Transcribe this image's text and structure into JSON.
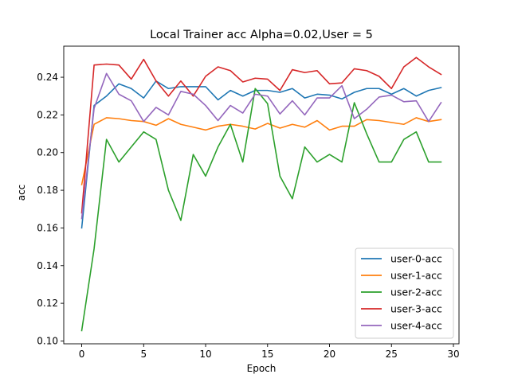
{
  "chart_data": {
    "type": "line",
    "title": "Local Trainer acc Alpha=0.02,User = 5",
    "xlabel": "Epoch",
    "ylabel": "acc",
    "xlim": [
      -1.45,
      30.45
    ],
    "ylim": [
      0.0985,
      0.2565
    ],
    "xticks": [
      0,
      5,
      10,
      15,
      20,
      25,
      30
    ],
    "xtick_labels": [
      "0",
      "5",
      "10",
      "15",
      "20",
      "25",
      "30"
    ],
    "yticks": [
      0.1,
      0.12,
      0.14,
      0.16,
      0.18,
      0.2,
      0.22,
      0.24
    ],
    "ytick_labels": [
      "0.10",
      "0.12",
      "0.14",
      "0.16",
      "0.18",
      "0.20",
      "0.22",
      "0.24"
    ],
    "grid": false,
    "legend_position": "lower right",
    "x": [
      0,
      1,
      2,
      3,
      4,
      5,
      6,
      7,
      8,
      9,
      10,
      11,
      12,
      13,
      14,
      15,
      16,
      17,
      18,
      19,
      20,
      21,
      22,
      23,
      24,
      25,
      26,
      27,
      28,
      29
    ],
    "series": [
      {
        "name": "user-0-acc",
        "color": "#1f77b4",
        "values": [
          0.16,
          0.225,
          0.23,
          0.2365,
          0.234,
          0.229,
          0.238,
          0.234,
          0.235,
          0.235,
          0.235,
          0.228,
          0.233,
          0.23,
          0.233,
          0.233,
          0.232,
          0.234,
          0.229,
          0.231,
          0.2305,
          0.2285,
          0.232,
          0.234,
          0.234,
          0.231,
          0.234,
          0.23,
          0.233,
          0.2345
        ]
      },
      {
        "name": "user-1-acc",
        "color": "#ff7f0e",
        "values": [
          0.183,
          0.215,
          0.2185,
          0.218,
          0.217,
          0.2165,
          0.2145,
          0.218,
          0.215,
          0.2135,
          0.212,
          0.214,
          0.215,
          0.214,
          0.2125,
          0.2155,
          0.213,
          0.215,
          0.2135,
          0.217,
          0.212,
          0.214,
          0.214,
          0.2175,
          0.217,
          0.216,
          0.215,
          0.2185,
          0.2165,
          0.2175
        ]
      },
      {
        "name": "user-2-acc",
        "color": "#2ca02c",
        "values": [
          0.1055,
          0.149,
          0.207,
          0.195,
          0.203,
          0.211,
          0.207,
          0.18,
          0.164,
          0.199,
          0.1875,
          0.203,
          0.215,
          0.195,
          0.234,
          0.226,
          0.1875,
          0.1755,
          0.203,
          0.195,
          0.199,
          0.195,
          0.2265,
          0.21,
          0.195,
          0.195,
          0.207,
          0.211,
          0.195,
          0.195
        ]
      },
      {
        "name": "user-3-acc",
        "color": "#d62728",
        "values": [
          0.168,
          0.2465,
          0.247,
          0.2465,
          0.239,
          0.2495,
          0.238,
          0.23,
          0.238,
          0.23,
          0.2405,
          0.2455,
          0.2435,
          0.2375,
          0.2395,
          0.239,
          0.233,
          0.244,
          0.2425,
          0.2435,
          0.2365,
          0.237,
          0.2445,
          0.2435,
          0.2405,
          0.234,
          0.2455,
          0.2505,
          0.2455,
          0.2415
        ]
      },
      {
        "name": "user-4-acc",
        "color": "#9467bd",
        "values": [
          0.165,
          0.2235,
          0.242,
          0.231,
          0.2275,
          0.2165,
          0.224,
          0.22,
          0.2325,
          0.231,
          0.225,
          0.217,
          0.225,
          0.221,
          0.231,
          0.23,
          0.2205,
          0.2275,
          0.22,
          0.229,
          0.229,
          0.2355,
          0.218,
          0.223,
          0.2295,
          0.2305,
          0.227,
          0.2275,
          0.2165,
          0.2265
        ]
      }
    ]
  }
}
